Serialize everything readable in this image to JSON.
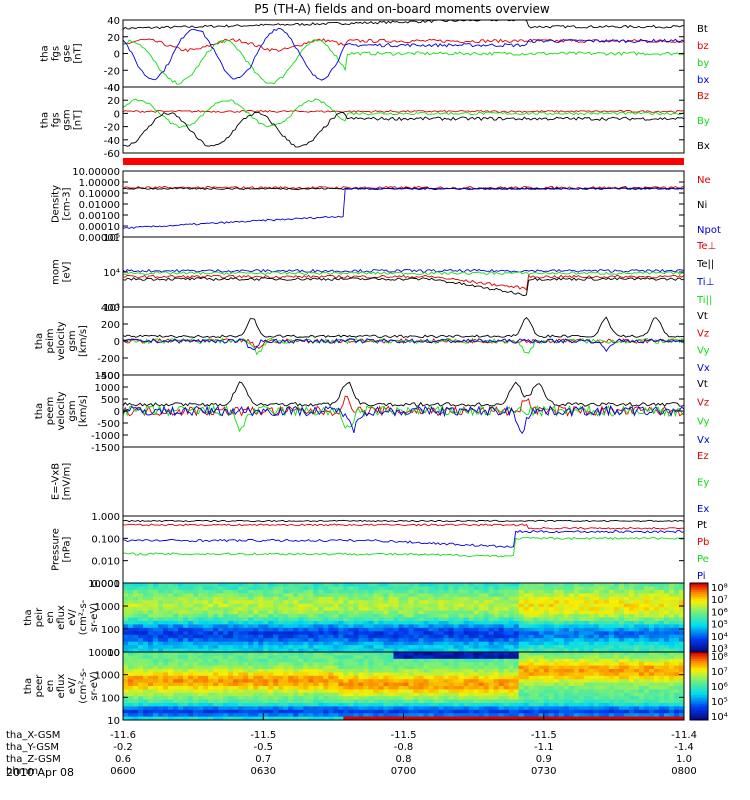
{
  "title": "P5 (TH-A) fields and on-board moments overview",
  "date": "2010 Apr 08",
  "colors": {
    "black": "#000000",
    "red": "#dd0000",
    "green": "#11dd11",
    "blue": "#0000dd",
    "panel_bar": "#ff0000"
  },
  "time_axis": {
    "row_labels": [
      "tha_X-GSM",
      "tha_Y-GSM",
      "tha_Z-GSM",
      "hhmm"
    ],
    "rows": [
      [
        "-11.6",
        "-11.5",
        "-11.5",
        "-11.5",
        "-11.4"
      ],
      [
        "-0.2",
        "-0.5",
        "-0.8",
        "-1.1",
        "-1.4"
      ],
      [
        "0.6",
        "0.7",
        "0.8",
        "0.9",
        "1.0"
      ],
      [
        "0600",
        "0630",
        "0700",
        "0730",
        "0800"
      ]
    ]
  },
  "chart_data": [
    {
      "type": "line",
      "id": "fgs_gse",
      "ylabel": [
        "tha",
        "fgs",
        "gse",
        "[nT]"
      ],
      "ylim": [
        -40,
        40
      ],
      "yticks": [
        "40",
        "20",
        "0",
        "-20",
        "-40"
      ],
      "series": [
        {
          "name": "Bt",
          "color": "black"
        },
        {
          "name": "bz",
          "color": "red"
        },
        {
          "name": "by",
          "color": "green"
        },
        {
          "name": "bx",
          "color": "blue"
        }
      ]
    },
    {
      "type": "line",
      "id": "fgs_dsl",
      "ylabel": [
        "tha",
        "fgs",
        "gsm",
        "[nT]"
      ],
      "ylim": [
        -60,
        40
      ],
      "yticks": [
        "40",
        "20",
        "0",
        "-20",
        "-40",
        "-60"
      ],
      "series": [
        {
          "name": "Bz",
          "color": "red"
        },
        {
          "name": "By",
          "color": "green"
        },
        {
          "name": "Bx",
          "color": "black"
        }
      ]
    },
    {
      "type": "line",
      "id": "density",
      "ylabel": [
        "Density",
        "[cm-3]"
      ],
      "ylim": [
        1e-05,
        10
      ],
      "scale": "log",
      "yticks": [
        "10.00000",
        "1.00000",
        "0.10000",
        "0.01000",
        "0.00100",
        "0.00010",
        "0.00001"
      ],
      "series": [
        {
          "name": "Ne",
          "color": "red"
        },
        {
          "name": "Ni",
          "color": "black"
        },
        {
          "name": "Npot",
          "color": "blue"
        }
      ]
    },
    {
      "type": "line",
      "id": "temperature",
      "ylabel": [
        "mom",
        "[eV]"
      ],
      "ylim": [
        100,
        100000
      ],
      "scale": "log",
      "yticks": [
        "10⁵",
        "10⁴",
        "10³"
      ],
      "series": [
        {
          "name": "Te⊥",
          "color": "red"
        },
        {
          "name": "Te||",
          "color": "black"
        },
        {
          "name": "Ti⊥",
          "color": "blue"
        },
        {
          "name": "Ti||",
          "color": "green"
        }
      ]
    },
    {
      "type": "line",
      "id": "peim_velocity",
      "ylabel": [
        "tha",
        "peim",
        "velocity",
        "gsm",
        "[km/s]"
      ],
      "ylim": [
        -400,
        400
      ],
      "yticks": [
        "400",
        "200",
        "0",
        "-200",
        "-400"
      ],
      "series": [
        {
          "name": "Vt",
          "color": "black"
        },
        {
          "name": "Vz",
          "color": "red"
        },
        {
          "name": "Vy",
          "color": "green"
        },
        {
          "name": "Vx",
          "color": "blue"
        }
      ]
    },
    {
      "type": "line",
      "id": "peem_velocity",
      "ylabel": [
        "tha",
        "peem",
        "velocity",
        "gsm",
        "[km/s]"
      ],
      "ylim": [
        -1500,
        1500
      ],
      "yticks": [
        "1500",
        "1000",
        "500",
        "0",
        "-500",
        "-1000",
        "-1500"
      ],
      "series": [
        {
          "name": "Vt",
          "color": "black"
        },
        {
          "name": "Vz",
          "color": "red"
        },
        {
          "name": "Vy",
          "color": "green"
        },
        {
          "name": "Vx",
          "color": "blue"
        }
      ]
    },
    {
      "type": "line",
      "id": "efield",
      "ylabel": [
        "E=-VxB",
        "[mV/m]"
      ],
      "ylim": [
        -1,
        1
      ],
      "series": [
        {
          "name": "Ez",
          "color": "red"
        },
        {
          "name": "Ey",
          "color": "green"
        },
        {
          "name": "Ex",
          "color": "blue"
        }
      ]
    },
    {
      "type": "line",
      "id": "pressure",
      "ylabel": [
        "Pressure",
        "[nPa]"
      ],
      "ylim": [
        0.001,
        1
      ],
      "scale": "log",
      "yticks": [
        "1.000",
        "0.100",
        "0.010",
        "0.001"
      ],
      "series": [
        {
          "name": "Pt",
          "color": "black"
        },
        {
          "name": "Pb",
          "color": "red"
        },
        {
          "name": "Pe",
          "color": "green"
        },
        {
          "name": "Pi",
          "color": "blue"
        }
      ]
    },
    {
      "type": "heatmap",
      "id": "peir_eflux",
      "ylabel": [
        "tha",
        "peir",
        "en",
        "eflux",
        "eV/",
        "(cm²-s-",
        "sr-eV)"
      ],
      "ylim": [
        10,
        10000
      ],
      "scale": "log",
      "yticks": [
        "10000",
        "1000",
        "100",
        "10"
      ],
      "colorbar_ticks": [
        "10⁸",
        "10⁷",
        "10⁶",
        "10⁵",
        "10⁴",
        "10³"
      ]
    },
    {
      "type": "heatmap",
      "id": "peer_eflux",
      "ylabel": [
        "tha",
        "peer",
        "en",
        "eflux",
        "eV/",
        "(cm²-s-",
        "sr-eV)"
      ],
      "ylim": [
        10,
        10000
      ],
      "scale": "log",
      "yticks": [
        "10000",
        "1000",
        "100",
        "10"
      ],
      "colorbar_ticks": [
        "10⁸",
        "10⁷",
        "10⁶",
        "10⁵",
        "10⁴"
      ]
    }
  ]
}
